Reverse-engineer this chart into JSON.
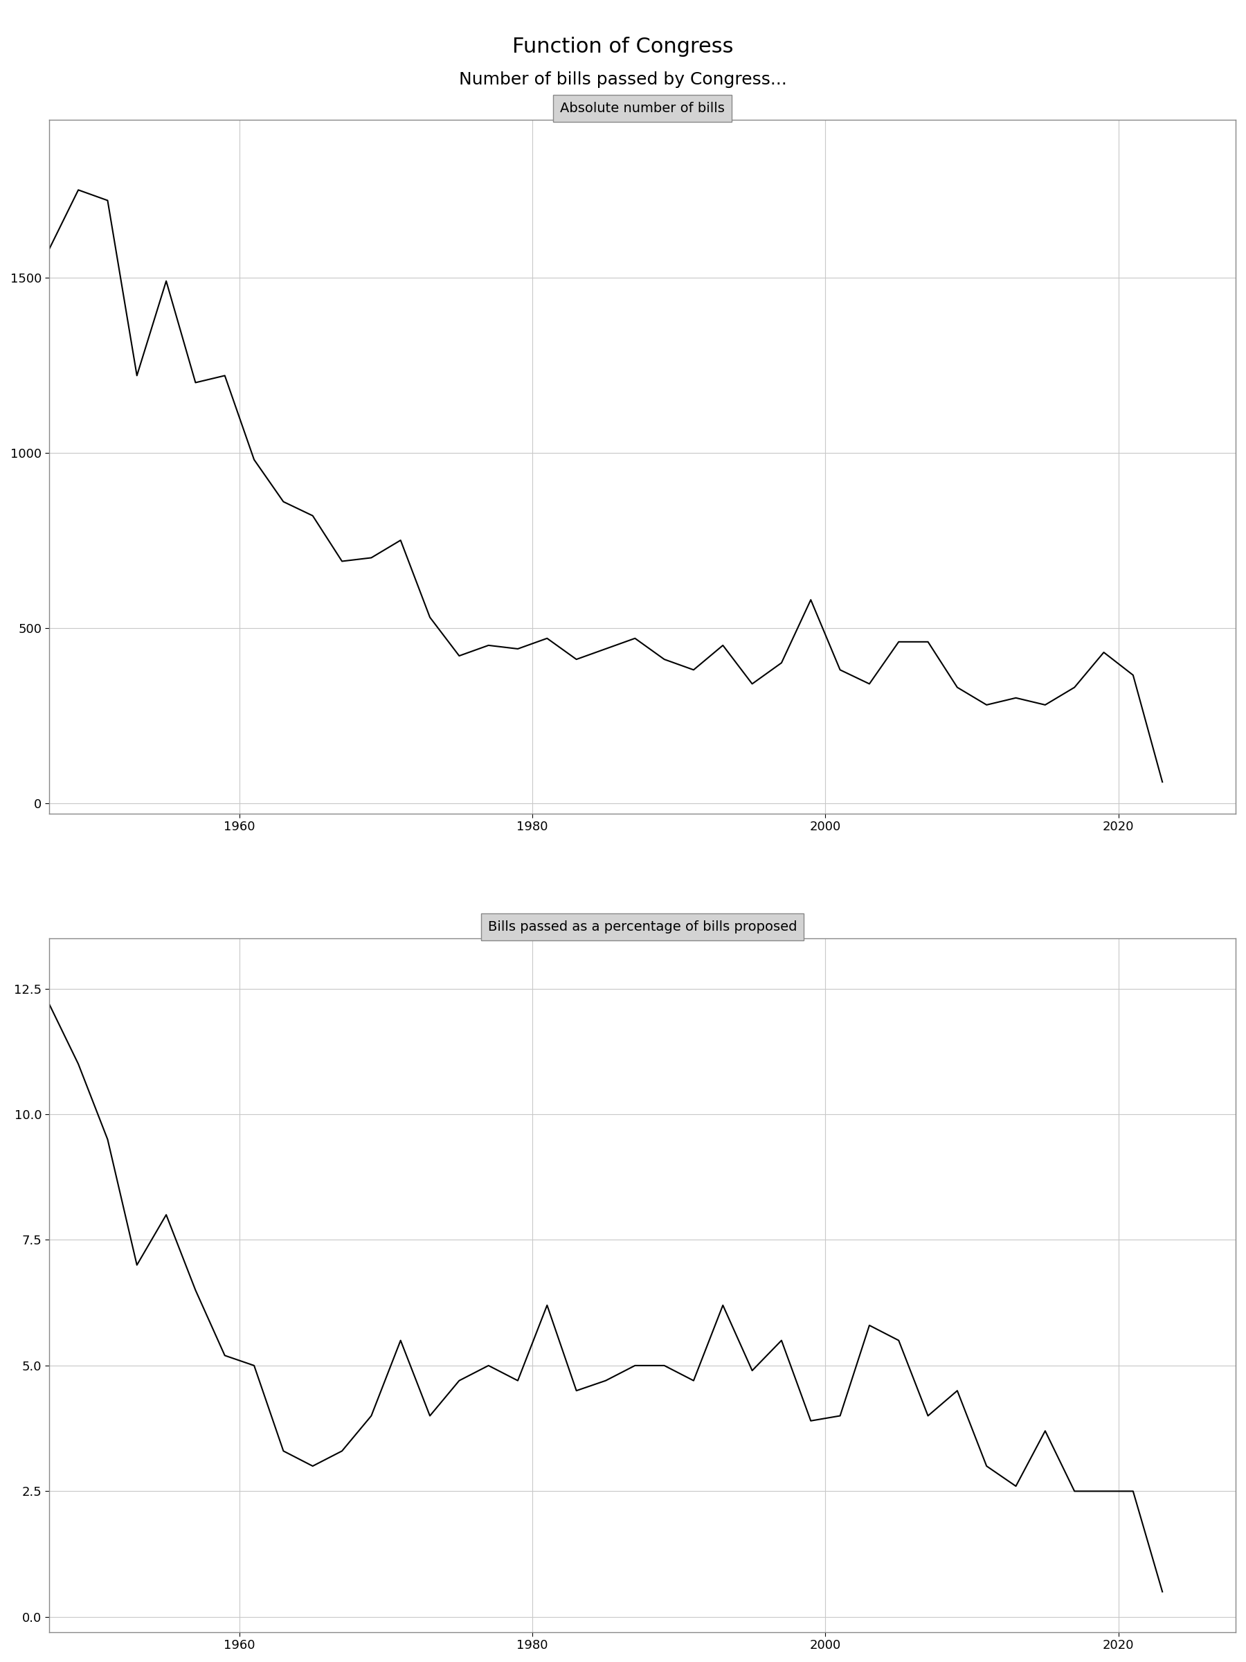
{
  "title": "Function of Congress",
  "subtitle": "Number of bills passed by Congress...",
  "panel1_title": "Absolute number of bills",
  "panel2_title": "Bills passed as a percentage of bills proposed",
  "years": [
    1947,
    1949,
    1951,
    1953,
    1955,
    1957,
    1959,
    1961,
    1963,
    1965,
    1967,
    1969,
    1971,
    1973,
    1975,
    1977,
    1979,
    1981,
    1983,
    1985,
    1987,
    1989,
    1991,
    1993,
    1995,
    1997,
    1999,
    2001,
    2003,
    2005,
    2007,
    2009,
    2011,
    2013,
    2015,
    2017,
    2019,
    2021,
    2023
  ],
  "abs_bills": [
    1580,
    1750,
    1720,
    1220,
    1490,
    1200,
    1220,
    980,
    860,
    820,
    690,
    700,
    750,
    530,
    420,
    450,
    440,
    470,
    410,
    440,
    470,
    410,
    380,
    450,
    340,
    400,
    580,
    380,
    340,
    460,
    460,
    330,
    280,
    300,
    280,
    330,
    430,
    365,
    60
  ],
  "pct_bills": [
    12.2,
    11.0,
    9.5,
    7.0,
    8.0,
    6.5,
    5.2,
    5.0,
    3.3,
    3.0,
    3.3,
    4.0,
    5.5,
    4.0,
    4.7,
    5.0,
    4.7,
    6.2,
    4.5,
    4.7,
    5.0,
    5.0,
    4.7,
    6.2,
    4.9,
    5.5,
    3.9,
    4.0,
    5.8,
    5.5,
    4.0,
    4.5,
    3.0,
    2.6,
    3.7,
    2.5,
    2.5,
    2.5,
    0.5
  ],
  "line_color": "#000000",
  "background_color": "#ffffff",
  "panel_bg": "#d3d3d3",
  "plot_bg": "#ffffff",
  "grid_color": "#c8c8c8",
  "title_fontsize": 22,
  "subtitle_fontsize": 18,
  "panel_title_fontsize": 14,
  "tick_fontsize": 13
}
